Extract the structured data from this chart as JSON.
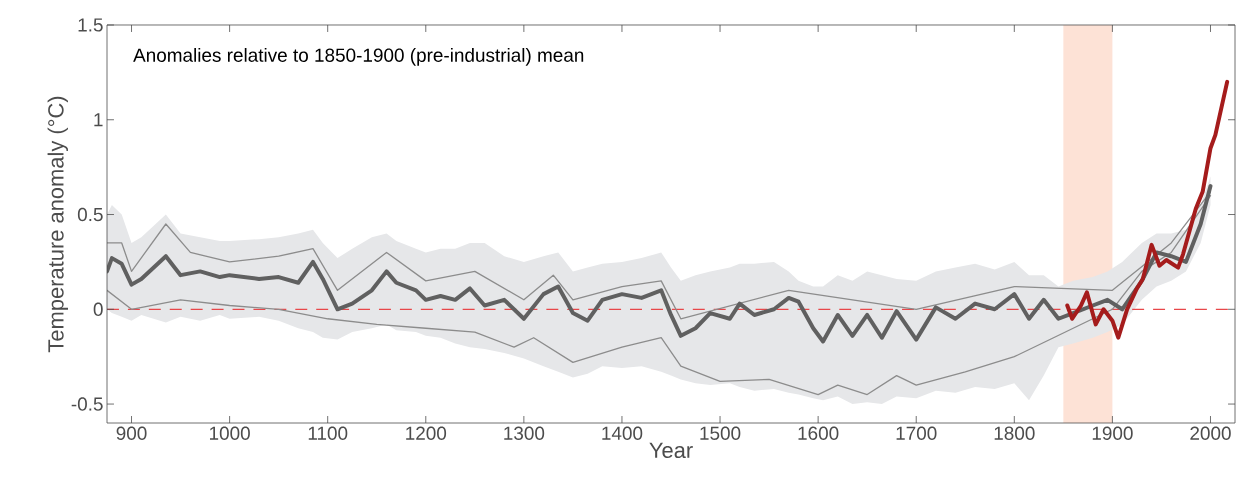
{
  "chart_data": {
    "type": "line",
    "xlabel": "Year",
    "ylabel": "Temperature anomaly (°C)",
    "annotations": [
      "Anomalies relative to 1850-1900 (pre-industrial) mean"
    ],
    "xlim": [
      875,
      2025
    ],
    "ylim": [
      -0.6,
      1.5
    ],
    "xticks": [
      900,
      1000,
      1100,
      1200,
      1300,
      1400,
      1500,
      1600,
      1700,
      1800,
      1900,
      2000
    ],
    "yticks": [
      -0.5,
      0,
      0.5,
      1,
      1.5
    ],
    "grid": false,
    "marker": "none",
    "line_style": "solid",
    "ref_lines": [
      {
        "axis": "y",
        "value": 0,
        "color": "#e8474a",
        "line_style": "dashed"
      }
    ],
    "bands": [
      {
        "axis": "x",
        "from": 1850,
        "to": 1900,
        "color": "#fde2d6"
      }
    ],
    "series": [
      {
        "color": "#8c8c8c",
        "x": [
          875,
          890,
          900,
          935,
          960,
          1000,
          1050,
          1085,
          1110,
          1160,
          1200,
          1250,
          1300,
          1330,
          1350,
          1400,
          1440,
          1460,
          1570,
          1700,
          1800,
          1900,
          1960,
          2000
        ],
        "values": [
          0.35,
          0.35,
          0.2,
          0.45,
          0.3,
          0.25,
          0.28,
          0.32,
          0.1,
          0.3,
          0.15,
          0.2,
          0.05,
          0.18,
          0.05,
          0.12,
          0.15,
          -0.05,
          0.1,
          0.0,
          0.12,
          0.1,
          0.35,
          0.62
        ]
      },
      {
        "color": "#8c8c8c",
        "x": [
          875,
          900,
          950,
          1000,
          1050,
          1100,
          1150,
          1200,
          1250,
          1290,
          1310,
          1350,
          1400,
          1440,
          1460,
          1500,
          1550,
          1600,
          1620,
          1650,
          1680,
          1700,
          1750,
          1800,
          1840,
          1860,
          1900,
          1930,
          1960,
          2000
        ],
        "values": [
          0.1,
          0.0,
          0.05,
          0.02,
          0.0,
          -0.05,
          -0.08,
          -0.1,
          -0.12,
          -0.2,
          -0.15,
          -0.28,
          -0.2,
          -0.15,
          -0.3,
          -0.38,
          -0.37,
          -0.45,
          -0.4,
          -0.45,
          -0.35,
          -0.4,
          -0.33,
          -0.25,
          -0.15,
          -0.1,
          0.0,
          0.2,
          0.3,
          0.6
        ]
      },
      {
        "color": "#606060",
        "x": [
          875,
          880,
          890,
          900,
          910,
          935,
          950,
          970,
          990,
          1000,
          1030,
          1050,
          1070,
          1085,
          1095,
          1110,
          1125,
          1145,
          1160,
          1170,
          1190,
          1200,
          1215,
          1230,
          1245,
          1260,
          1280,
          1300,
          1320,
          1335,
          1350,
          1365,
          1380,
          1400,
          1420,
          1440,
          1450,
          1460,
          1475,
          1490,
          1510,
          1520,
          1535,
          1555,
          1570,
          1580,
          1595,
          1605,
          1620,
          1635,
          1650,
          1665,
          1680,
          1700,
          1720,
          1740,
          1760,
          1780,
          1800,
          1815,
          1830,
          1845,
          1860,
          1880,
          1895,
          1910,
          1930,
          1945,
          1960,
          1975,
          1990,
          2000
        ],
        "values": [
          0.2,
          0.27,
          0.24,
          0.13,
          0.16,
          0.28,
          0.18,
          0.2,
          0.17,
          0.18,
          0.16,
          0.17,
          0.14,
          0.25,
          0.16,
          0.0,
          0.03,
          0.1,
          0.2,
          0.14,
          0.1,
          0.05,
          0.07,
          0.05,
          0.11,
          0.02,
          0.05,
          -0.05,
          0.08,
          0.12,
          -0.02,
          -0.06,
          0.05,
          0.08,
          0.06,
          0.1,
          -0.03,
          -0.14,
          -0.1,
          -0.02,
          -0.05,
          0.03,
          -0.03,
          0.0,
          0.06,
          0.04,
          -0.1,
          -0.17,
          -0.03,
          -0.14,
          -0.03,
          -0.15,
          -0.01,
          -0.16,
          0.01,
          -0.05,
          0.03,
          0.0,
          0.08,
          -0.05,
          0.05,
          -0.05,
          -0.02,
          0.02,
          0.05,
          0.0,
          0.15,
          0.3,
          0.28,
          0.25,
          0.45,
          0.65
        ],
        "lower": [
          0.0,
          -0.02,
          -0.04,
          -0.06,
          -0.03,
          -0.07,
          -0.04,
          -0.06,
          -0.03,
          -0.05,
          -0.04,
          -0.06,
          -0.1,
          -0.12,
          -0.15,
          -0.16,
          -0.12,
          -0.1,
          -0.08,
          -0.11,
          -0.12,
          -0.14,
          -0.15,
          -0.18,
          -0.2,
          -0.21,
          -0.23,
          -0.26,
          -0.3,
          -0.33,
          -0.36,
          -0.34,
          -0.3,
          -0.31,
          -0.3,
          -0.33,
          -0.35,
          -0.37,
          -0.39,
          -0.4,
          -0.39,
          -0.41,
          -0.43,
          -0.42,
          -0.44,
          -0.45,
          -0.47,
          -0.48,
          -0.46,
          -0.5,
          -0.49,
          -0.5,
          -0.46,
          -0.47,
          -0.43,
          -0.44,
          -0.41,
          -0.42,
          -0.39,
          -0.48,
          -0.35,
          -0.2,
          -0.18,
          -0.15,
          -0.12,
          -0.08,
          0.05,
          0.12,
          0.15,
          0.2,
          0.35,
          0.55
        ],
        "upper": [
          0.5,
          0.55,
          0.5,
          0.35,
          0.38,
          0.5,
          0.4,
          0.38,
          0.36,
          0.36,
          0.37,
          0.38,
          0.4,
          0.42,
          0.35,
          0.27,
          0.32,
          0.38,
          0.4,
          0.36,
          0.32,
          0.3,
          0.32,
          0.32,
          0.35,
          0.35,
          0.28,
          0.25,
          0.28,
          0.3,
          0.2,
          0.22,
          0.24,
          0.25,
          0.27,
          0.3,
          0.22,
          0.15,
          0.18,
          0.2,
          0.22,
          0.24,
          0.24,
          0.25,
          0.2,
          0.15,
          0.12,
          0.12,
          0.18,
          0.15,
          0.2,
          0.18,
          0.16,
          0.15,
          0.2,
          0.22,
          0.24,
          0.21,
          0.25,
          0.18,
          0.18,
          0.12,
          0.15,
          0.17,
          0.2,
          0.25,
          0.35,
          0.4,
          0.4,
          0.42,
          0.55,
          0.7
        ]
      },
      {
        "color": "#a51c1c",
        "x": [
          1854,
          1859,
          1868,
          1874,
          1883,
          1891,
          1900,
          1906,
          1915,
          1925,
          1931,
          1940,
          1948,
          1955,
          1967,
          1972,
          1985,
          1992,
          2000,
          2005,
          2017
        ],
        "values": [
          0.02,
          -0.05,
          0.02,
          0.09,
          -0.08,
          0.0,
          -0.06,
          -0.15,
          0.0,
          0.11,
          0.16,
          0.34,
          0.23,
          0.26,
          0.22,
          0.29,
          0.53,
          0.62,
          0.85,
          0.92,
          1.2
        ]
      }
    ]
  }
}
